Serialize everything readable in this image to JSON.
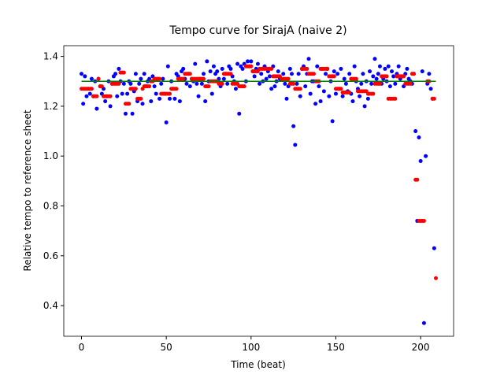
{
  "chart_data": {
    "type": "scatter",
    "title": "Tempo curve for SirajA (naive 2)",
    "x_label": "Time (beat)",
    "y_label": "Relative tempo to reference sheet",
    "xlim": [
      -10.45,
      219.45
    ],
    "ylim": [
      0.277,
      1.443
    ],
    "xticks": [
      0,
      50,
      100,
      150,
      200
    ],
    "yticks": [
      0.4,
      0.6,
      0.8,
      {
        "value": 1,
        "label": "1.0"
      },
      1.2,
      1.4
    ],
    "x": [
      0,
      1,
      2,
      3,
      4,
      5,
      6,
      7,
      8,
      9,
      10,
      11,
      12,
      13,
      14,
      15,
      16,
      17,
      18,
      19,
      20,
      21,
      22,
      23,
      24,
      25,
      26,
      27,
      28,
      29,
      30,
      31,
      32,
      33,
      34,
      35,
      36,
      37,
      38,
      39,
      40,
      41,
      42,
      43,
      44,
      45,
      46,
      47,
      48,
      49,
      50,
      51,
      52,
      53,
      54,
      55,
      56,
      57,
      58,
      59,
      60,
      61,
      62,
      63,
      64,
      65,
      66,
      67,
      68,
      69,
      70,
      71,
      72,
      73,
      74,
      75,
      76,
      77,
      78,
      79,
      80,
      81,
      82,
      83,
      84,
      85,
      86,
      87,
      88,
      89,
      90,
      91,
      92,
      93,
      94,
      95,
      96,
      97,
      98,
      99,
      100,
      101,
      102,
      103,
      104,
      105,
      106,
      107,
      108,
      109,
      110,
      111,
      112,
      113,
      114,
      115,
      116,
      117,
      118,
      119,
      120,
      121,
      122,
      123,
      124,
      125,
      126,
      127,
      128,
      129,
      130,
      131,
      132,
      133,
      134,
      135,
      136,
      137,
      138,
      139,
      140,
      141,
      142,
      143,
      144,
      145,
      146,
      147,
      148,
      149,
      150,
      151,
      152,
      153,
      154,
      155,
      156,
      157,
      158,
      159,
      160,
      161,
      162,
      163,
      164,
      165,
      166,
      167,
      168,
      169,
      170,
      171,
      172,
      173,
      174,
      175,
      176,
      177,
      178,
      179,
      180,
      181,
      182,
      183,
      184,
      185,
      186,
      187,
      188,
      189,
      190,
      191,
      192,
      193,
      194,
      195,
      196,
      197,
      198,
      199,
      200,
      201,
      202,
      203,
      204,
      205,
      206,
      207,
      208,
      209
    ],
    "series": [
      {
        "color": "#0000ff",
        "values": [
          1.33,
          1.21,
          1.32,
          1.24,
          1.27,
          1.25,
          1.31,
          1.24,
          1.3,
          1.19,
          1.31,
          1.28,
          1.25,
          1.27,
          1.22,
          1.24,
          1.3,
          1.2,
          1.29,
          1.32,
          1.33,
          1.24,
          1.35,
          1.3,
          1.25,
          1.29,
          1.17,
          1.25,
          1.3,
          1.29,
          1.17,
          1.26,
          1.33,
          1.22,
          1.29,
          1.31,
          1.21,
          1.33,
          1.28,
          1.3,
          1.31,
          1.22,
          1.32,
          1.28,
          1.25,
          1.31,
          1.23,
          1.29,
          1.31,
          1.25,
          1.135,
          1.36,
          1.23,
          1.3,
          1.27,
          1.23,
          1.33,
          1.32,
          1.22,
          1.34,
          1.35,
          1.31,
          1.29,
          1.33,
          1.28,
          1.31,
          1.3,
          1.37,
          1.29,
          1.24,
          1.31,
          1.29,
          1.33,
          1.22,
          1.38,
          1.3,
          1.34,
          1.25,
          1.36,
          1.33,
          1.34,
          1.31,
          1.28,
          1.35,
          1.31,
          1.33,
          1.29,
          1.36,
          1.35,
          1.32,
          1.3,
          1.27,
          1.37,
          1.17,
          1.36,
          1.35,
          1.37,
          1.3,
          1.38,
          1.36,
          1.38,
          1.34,
          1.32,
          1.35,
          1.37,
          1.29,
          1.33,
          1.3,
          1.36,
          1.31,
          1.34,
          1.32,
          1.27,
          1.36,
          1.28,
          1.3,
          1.34,
          1.31,
          1.31,
          1.33,
          1.29,
          1.23,
          1.28,
          1.35,
          1.33,
          1.12,
          1.045,
          1.29,
          1.33,
          1.24,
          1.35,
          1.36,
          1.28,
          1.33,
          1.39,
          1.25,
          1.3,
          1.3,
          1.21,
          1.36,
          1.28,
          1.22,
          1.35,
          1.26,
          1.33,
          1.35,
          1.24,
          1.3,
          1.14,
          1.34,
          1.25,
          1.33,
          1.27,
          1.35,
          1.24,
          1.31,
          1.29,
          1.26,
          1.33,
          1.25,
          1.22,
          1.36,
          1.3,
          1.27,
          1.24,
          1.29,
          1.33,
          1.2,
          1.3,
          1.23,
          1.34,
          1.29,
          1.32,
          1.39,
          1.31,
          1.33,
          1.36,
          1.29,
          1.31,
          1.35,
          1.3,
          1.36,
          1.28,
          1.34,
          1.32,
          1.29,
          1.33,
          1.36,
          1.31,
          1.32,
          1.28,
          1.33,
          1.35,
          1.31,
          1.3,
          1.29,
          1.33,
          1.1,
          0.74,
          1.075,
          0.98,
          1.34,
          0.33,
          1.0,
          1.29,
          1.33,
          1.27,
          1.23,
          0.63,
          null
        ]
      },
      {
        "color": "#ff0000",
        "values": [
          1.27,
          1.27,
          1.27,
          1.27,
          1.27,
          1.27,
          1.27,
          1.24,
          1.24,
          1.24,
          1.31,
          1.28,
          1.28,
          1.24,
          1.24,
          1.24,
          1.24,
          1.24,
          1.29,
          1.29,
          1.29,
          1.29,
          1.29,
          1.335,
          1.335,
          1.335,
          1.21,
          1.21,
          1.21,
          1.27,
          1.27,
          1.27,
          1.27,
          1.23,
          1.23,
          1.23,
          1.27,
          1.28,
          1.28,
          1.28,
          1.28,
          1.3,
          1.3,
          1.31,
          1.31,
          1.31,
          1.31,
          1.25,
          1.25,
          1.25,
          1.25,
          1.25,
          1.25,
          1.27,
          1.27,
          1.27,
          1.27,
          1.31,
          1.31,
          1.31,
          1.31,
          1.33,
          1.33,
          1.33,
          1.33,
          1.31,
          1.31,
          1.31,
          1.31,
          1.31,
          1.31,
          1.31,
          1.31,
          1.28,
          1.28,
          1.28,
          1.3,
          1.3,
          1.3,
          1.3,
          1.3,
          1.29,
          1.29,
          1.29,
          1.33,
          1.33,
          1.33,
          1.33,
          1.33,
          1.29,
          1.29,
          1.29,
          1.29,
          1.28,
          1.28,
          1.28,
          1.28,
          1.36,
          1.36,
          1.36,
          1.36,
          1.34,
          1.34,
          1.34,
          1.34,
          1.35,
          1.35,
          1.35,
          1.35,
          1.35,
          1.35,
          1.35,
          1.35,
          1.32,
          1.32,
          1.32,
          1.32,
          1.32,
          1.31,
          1.31,
          1.31,
          1.31,
          1.31,
          1.29,
          1.29,
          1.29,
          1.27,
          1.27,
          1.27,
          1.27,
          1.35,
          1.35,
          1.35,
          1.35,
          1.33,
          1.33,
          1.33,
          1.33,
          1.3,
          1.3,
          1.3,
          1.35,
          1.35,
          1.35,
          1.35,
          1.35,
          1.32,
          1.32,
          1.32,
          1.32,
          1.27,
          1.27,
          1.27,
          1.27,
          1.255,
          1.255,
          1.255,
          1.255,
          1.255,
          1.31,
          1.31,
          1.31,
          1.31,
          1.26,
          1.26,
          1.26,
          1.26,
          1.26,
          1.26,
          1.25,
          1.25,
          1.25,
          1.25,
          1.29,
          1.29,
          1.29,
          1.29,
          1.32,
          1.32,
          1.32,
          1.32,
          1.23,
          1.23,
          1.23,
          1.23,
          1.23,
          1.32,
          1.32,
          1.32,
          1.32,
          1.32,
          1.29,
          1.29,
          1.29,
          1.29,
          1.33,
          1.33,
          0.905,
          0.905,
          0.74,
          0.74,
          0.74,
          0.74,
          null,
          1.3,
          1.3,
          null,
          1.23,
          1.23,
          0.51
        ]
      }
    ],
    "reference_line": {
      "y": 1.3,
      "x": [
        0,
        209
      ],
      "color": "#008000"
    }
  }
}
